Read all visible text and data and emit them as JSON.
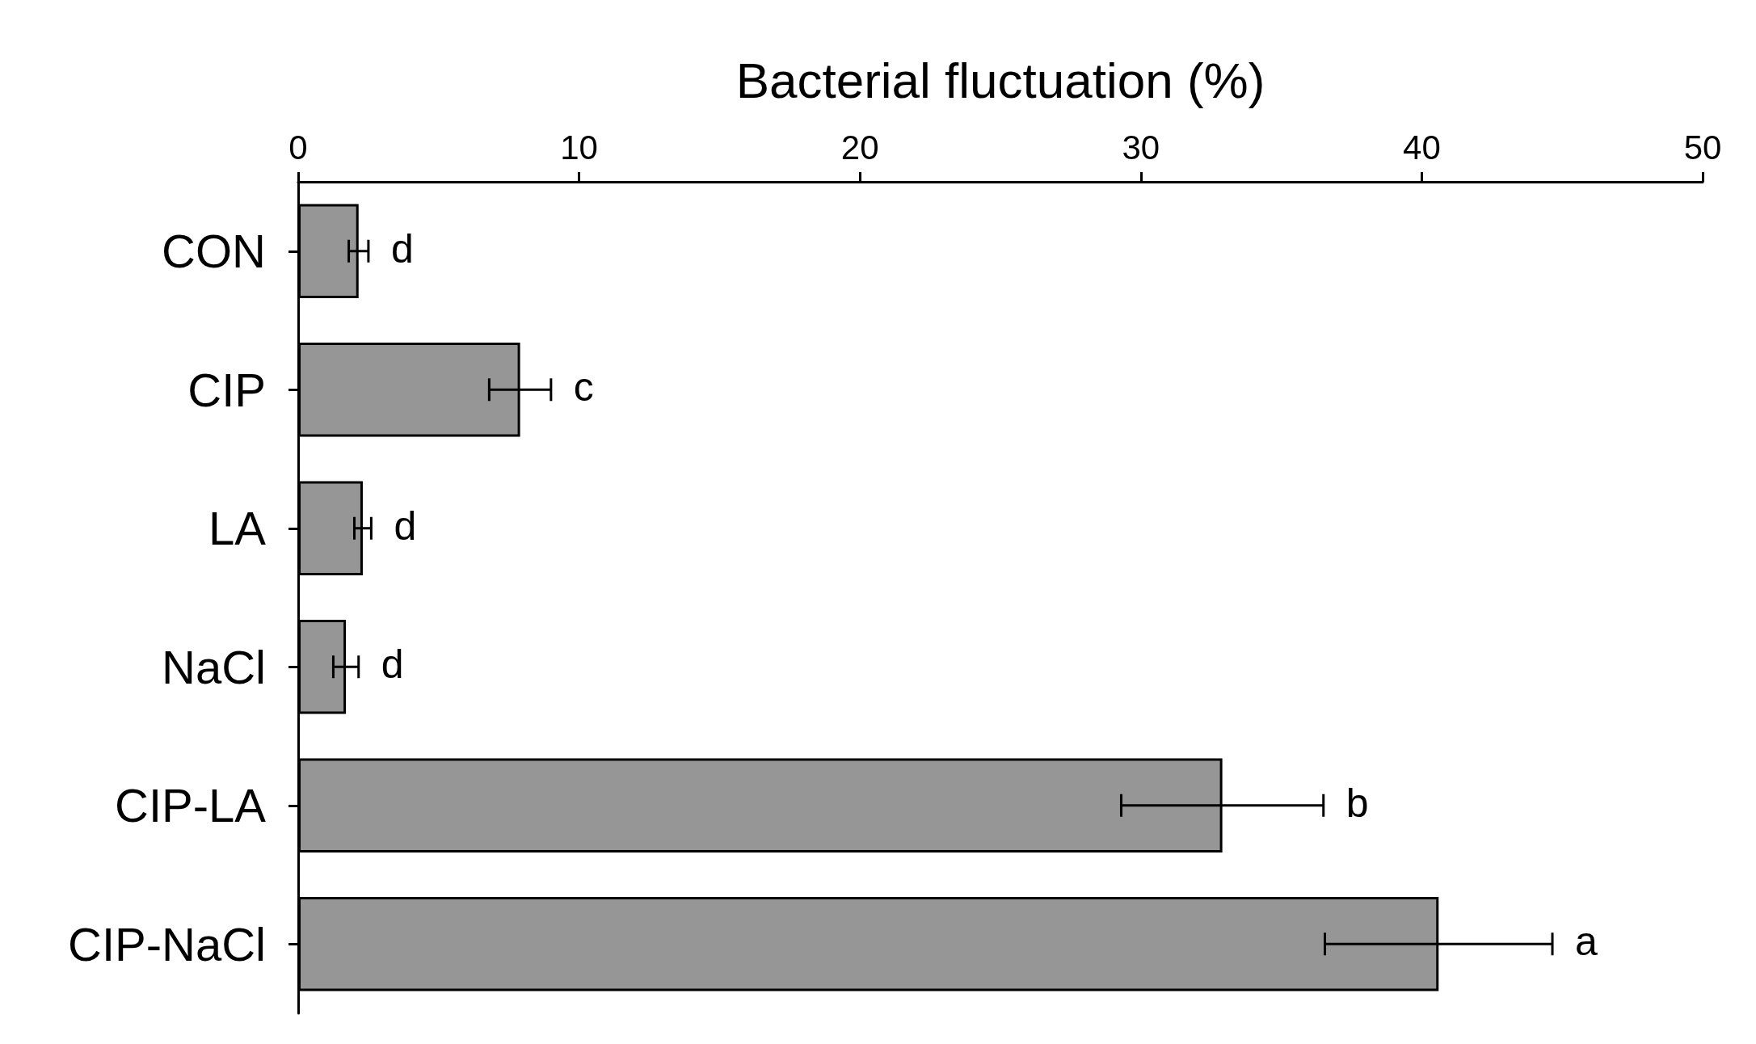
{
  "chart_data": {
    "type": "bar",
    "orientation": "horizontal",
    "xlabel": "Bacterial fluctuation (%)",
    "categories": [
      "CON",
      "CIP",
      "LA",
      "NaCl",
      "CIP-LA",
      "CIP-NaCl"
    ],
    "values": [
      2.15,
      7.9,
      2.3,
      1.7,
      32.9,
      40.6
    ],
    "errors": [
      0.35,
      1.1,
      0.3,
      0.45,
      3.6,
      4.05
    ],
    "color": "#969696",
    "xlim": [
      0,
      50
    ],
    "xticks": [
      0,
      10,
      20,
      30,
      40,
      50
    ],
    "grid": false,
    "annotations": [
      {
        "text": "d",
        "x": 2.5,
        "y": "CON"
      },
      {
        "text": "c",
        "x": 9.0,
        "y": "CIP"
      },
      {
        "text": "d",
        "x": 2.6,
        "y": "LA"
      },
      {
        "text": "d",
        "x": 2.15,
        "y": "NaCl"
      },
      {
        "text": "b",
        "x": 36.5,
        "y": "CIP-LA"
      },
      {
        "text": "a",
        "x": 44.65,
        "y": "CIP-NaCl"
      }
    ]
  }
}
